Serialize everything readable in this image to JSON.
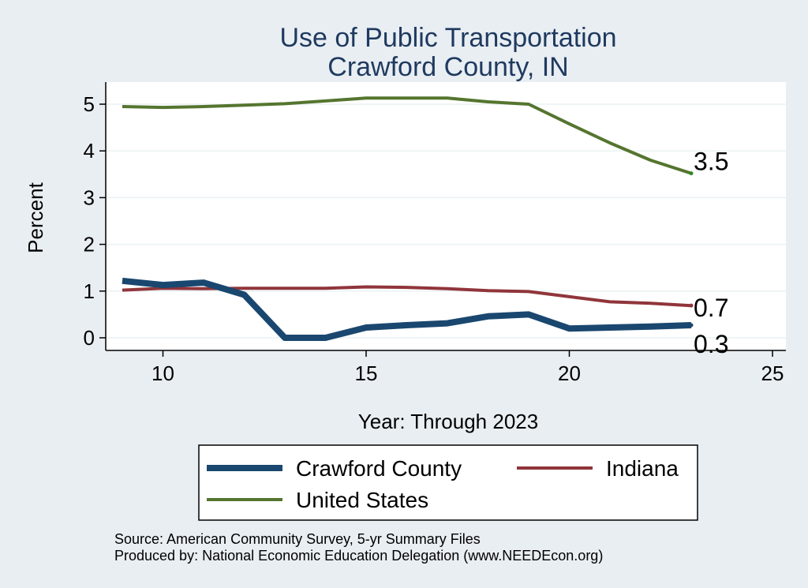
{
  "chart_data": {
    "type": "line",
    "title": [
      "Use of Public Transportation",
      "Crawford County, IN"
    ],
    "xlabel": "Year: Through 2023",
    "ylabel": "Percent",
    "xlim": [
      9,
      25
    ],
    "ylim": [
      0,
      5
    ],
    "xticks": [
      10,
      15,
      20,
      25
    ],
    "yticks": [
      0,
      1,
      2,
      3,
      4,
      5
    ],
    "grid": true,
    "legend_position": "bottom",
    "series": [
      {
        "name": "Crawford County",
        "color": "#1a476f",
        "x": [
          9,
          10,
          11,
          12,
          13,
          14,
          15,
          16,
          17,
          18,
          19,
          20,
          21,
          22,
          23
        ],
        "y": [
          1.22,
          1.13,
          1.18,
          0.92,
          0.0,
          0.0,
          0.22,
          0.27,
          0.31,
          0.46,
          0.5,
          0.2,
          0.22,
          0.24,
          0.27
        ],
        "end_label": "0.3"
      },
      {
        "name": "Indiana",
        "color": "#90353b",
        "x": [
          9,
          10,
          11,
          12,
          13,
          14,
          15,
          16,
          17,
          18,
          19,
          20,
          21,
          22,
          23
        ],
        "y": [
          1.02,
          1.06,
          1.05,
          1.06,
          1.06,
          1.06,
          1.09,
          1.08,
          1.05,
          1.01,
          0.99,
          0.88,
          0.77,
          0.74,
          0.69
        ],
        "end_label": "0.7"
      },
      {
        "name": "United States",
        "color": "#55752f",
        "x": [
          9,
          10,
          11,
          12,
          13,
          14,
          15,
          16,
          17,
          18,
          19,
          20,
          21,
          22,
          23
        ],
        "y": [
          4.95,
          4.93,
          4.95,
          4.98,
          5.01,
          5.07,
          5.13,
          5.13,
          5.13,
          5.05,
          5.0,
          4.58,
          4.17,
          3.8,
          3.52
        ],
        "end_label": "3.5"
      }
    ],
    "notes": [
      "Source: American Community Survey, 5-yr Summary Files",
      "Produced by: National Economic Education Delegation (www.NEEDEcon.org)"
    ]
  }
}
